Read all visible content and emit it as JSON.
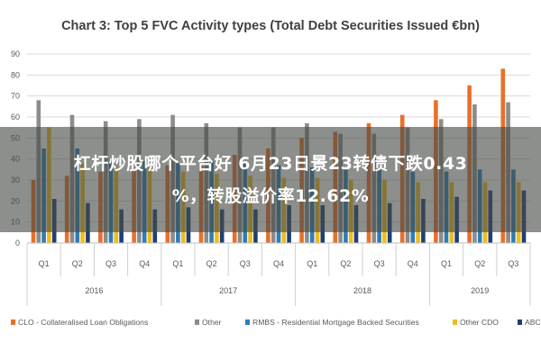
{
  "chart_data": {
    "type": "bar",
    "title": "Chart 3: Top 5 FVC Activity types (Total Debt Securities Issued €bn)",
    "ylim": [
      0,
      90
    ],
    "yticks": [
      0,
      10,
      20,
      30,
      40,
      50,
      60,
      70,
      80,
      90
    ],
    "grid": true,
    "legend_position": "bottom",
    "categories": [
      "Q1",
      "Q2",
      "Q3",
      "Q4",
      "Q1",
      "Q2",
      "Q3",
      "Q4",
      "Q1",
      "Q2",
      "Q3",
      "Q4",
      "Q1",
      "Q2",
      "Q3"
    ],
    "years": [
      {
        "label": "2016",
        "quarters": 4
      },
      {
        "label": "2017",
        "quarters": 4
      },
      {
        "label": "2018",
        "quarters": 4
      },
      {
        "label": "2019",
        "quarters": 3
      }
    ],
    "series": [
      {
        "name": "CLO - Collateralised Loan Obligations",
        "color": "#e8702a",
        "values": [
          30,
          32,
          34,
          35,
          37,
          38,
          42,
          45,
          50,
          53,
          57,
          61,
          68,
          75,
          83
        ]
      },
      {
        "name": "Other",
        "color": "#8c8c8c",
        "values": [
          68,
          61,
          58,
          59,
          61,
          57,
          55,
          55,
          57,
          52,
          52,
          55,
          59,
          66,
          67
        ]
      },
      {
        "name": "RMBS - Residential Mortgage Backed Securities",
        "color": "#2e7db3",
        "values": [
          45,
          45,
          40,
          39,
          38,
          39,
          38,
          37,
          36,
          36,
          35,
          34,
          34,
          35,
          35
        ]
      },
      {
        "name": "Other CDO",
        "color": "#f2bc1a",
        "values": [
          55,
          38,
          36,
          36,
          34,
          33,
          32,
          31,
          31,
          30,
          30,
          29,
          29,
          29,
          29
        ]
      },
      {
        "name": "ABCP",
        "color": "#1f3f73",
        "values": [
          21,
          19,
          16,
          16,
          17,
          16,
          16,
          18,
          18,
          18,
          19,
          21,
          22,
          25,
          25
        ]
      }
    ]
  },
  "overlay": {
    "line1": "杠杆炒股哪个平台好 6月23日景23转债下跌0.43",
    "line2": "%，转股溢价率12.62%"
  }
}
